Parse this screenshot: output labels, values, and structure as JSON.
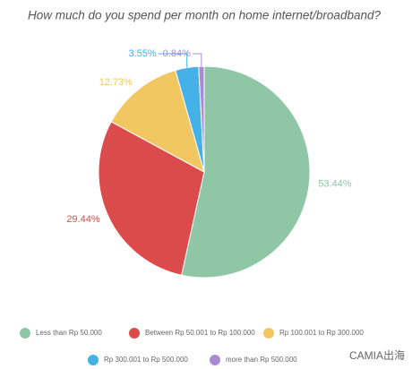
{
  "chart_data": {
    "type": "pie",
    "title": "How much do you spend per month on home internet/broadband?",
    "categories": [
      "Less than Rp 50.000",
      "Between Rp 50.001 to Rp 100.000",
      "Rp 100.001 to Rp 300.000",
      "Rp 300.001 to Rp 500.000",
      "more than Rp 500.000"
    ],
    "values": [
      53.44,
      29.44,
      12.73,
      3.55,
      0.84
    ],
    "value_labels": [
      "53.44%",
      "29.44%",
      "12.73%",
      "3.55%",
      "0.84%"
    ],
    "colors": [
      "#8ec6a6",
      "#db4b4b",
      "#f2c761",
      "#45b1e6",
      "#a98bd4"
    ],
    "legend": "bottom"
  },
  "watermark": "CAMIA出海"
}
